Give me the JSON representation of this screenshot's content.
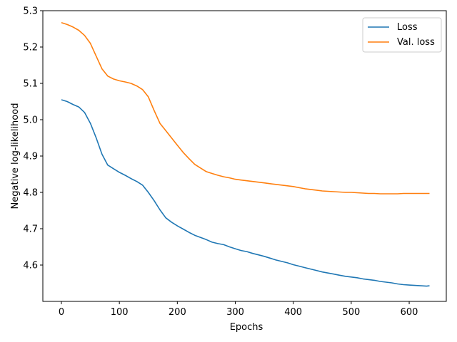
{
  "chart_data": {
    "type": "line",
    "title": "",
    "xlabel": "Epochs",
    "ylabel": "Negative log-likelihood",
    "xlim": [
      -32,
      664
    ],
    "ylim": [
      4.5,
      5.3
    ],
    "xticks": [
      0,
      100,
      200,
      300,
      400,
      500,
      600
    ],
    "yticks": [
      4.6,
      4.7,
      4.8,
      4.9,
      5.0,
      5.1,
      5.2,
      5.3
    ],
    "grid": false,
    "legend_position": "top-right",
    "series": [
      {
        "name": "Loss",
        "color": "#1f77b4",
        "x": [
          0,
          10,
          20,
          30,
          40,
          50,
          60,
          70,
          80,
          90,
          100,
          110,
          120,
          130,
          140,
          150,
          160,
          170,
          180,
          190,
          200,
          210,
          220,
          230,
          240,
          250,
          260,
          270,
          280,
          290,
          300,
          310,
          320,
          330,
          340,
          350,
          360,
          370,
          380,
          390,
          400,
          410,
          420,
          430,
          440,
          450,
          460,
          470,
          480,
          490,
          500,
          510,
          520,
          530,
          540,
          550,
          560,
          570,
          580,
          590,
          600,
          610,
          620,
          630,
          635
        ],
        "y": [
          5.055,
          5.05,
          5.042,
          5.035,
          5.02,
          4.99,
          4.95,
          4.905,
          4.875,
          4.865,
          4.855,
          4.847,
          4.838,
          4.83,
          4.82,
          4.8,
          4.777,
          4.752,
          4.73,
          4.718,
          4.708,
          4.699,
          4.69,
          4.682,
          4.676,
          4.67,
          4.663,
          4.659,
          4.656,
          4.65,
          4.645,
          4.64,
          4.637,
          4.632,
          4.628,
          4.624,
          4.619,
          4.614,
          4.61,
          4.606,
          4.601,
          4.597,
          4.593,
          4.589,
          4.585,
          4.581,
          4.578,
          4.575,
          4.572,
          4.569,
          4.567,
          4.565,
          4.562,
          4.56,
          4.558,
          4.555,
          4.553,
          4.551,
          4.548,
          4.546,
          4.545,
          4.544,
          4.543,
          4.542,
          4.543
        ]
      },
      {
        "name": "Val. loss",
        "color": "#ff7f0e",
        "x": [
          0,
          10,
          20,
          30,
          40,
          50,
          60,
          70,
          80,
          90,
          100,
          110,
          120,
          130,
          140,
          150,
          160,
          170,
          180,
          190,
          200,
          210,
          220,
          230,
          240,
          250,
          260,
          270,
          280,
          290,
          300,
          310,
          320,
          330,
          340,
          350,
          360,
          370,
          380,
          390,
          400,
          410,
          420,
          430,
          440,
          450,
          460,
          470,
          480,
          490,
          500,
          510,
          520,
          530,
          540,
          550,
          560,
          570,
          580,
          590,
          600,
          610,
          620,
          630,
          635
        ],
        "y": [
          5.267,
          5.262,
          5.255,
          5.246,
          5.232,
          5.21,
          5.175,
          5.14,
          5.12,
          5.112,
          5.107,
          5.104,
          5.1,
          5.093,
          5.083,
          5.063,
          5.025,
          4.99,
          4.97,
          4.95,
          4.93,
          4.91,
          4.893,
          4.877,
          4.867,
          4.857,
          4.852,
          4.847,
          4.843,
          4.84,
          4.836,
          4.834,
          4.832,
          4.83,
          4.828,
          4.826,
          4.824,
          4.822,
          4.82,
          4.818,
          4.816,
          4.813,
          4.81,
          4.808,
          4.806,
          4.804,
          4.803,
          4.802,
          4.801,
          4.8,
          4.8,
          4.799,
          4.798,
          4.797,
          4.797,
          4.796,
          4.796,
          4.796,
          4.796,
          4.797,
          4.797,
          4.797,
          4.797,
          4.797,
          4.797
        ]
      }
    ]
  }
}
